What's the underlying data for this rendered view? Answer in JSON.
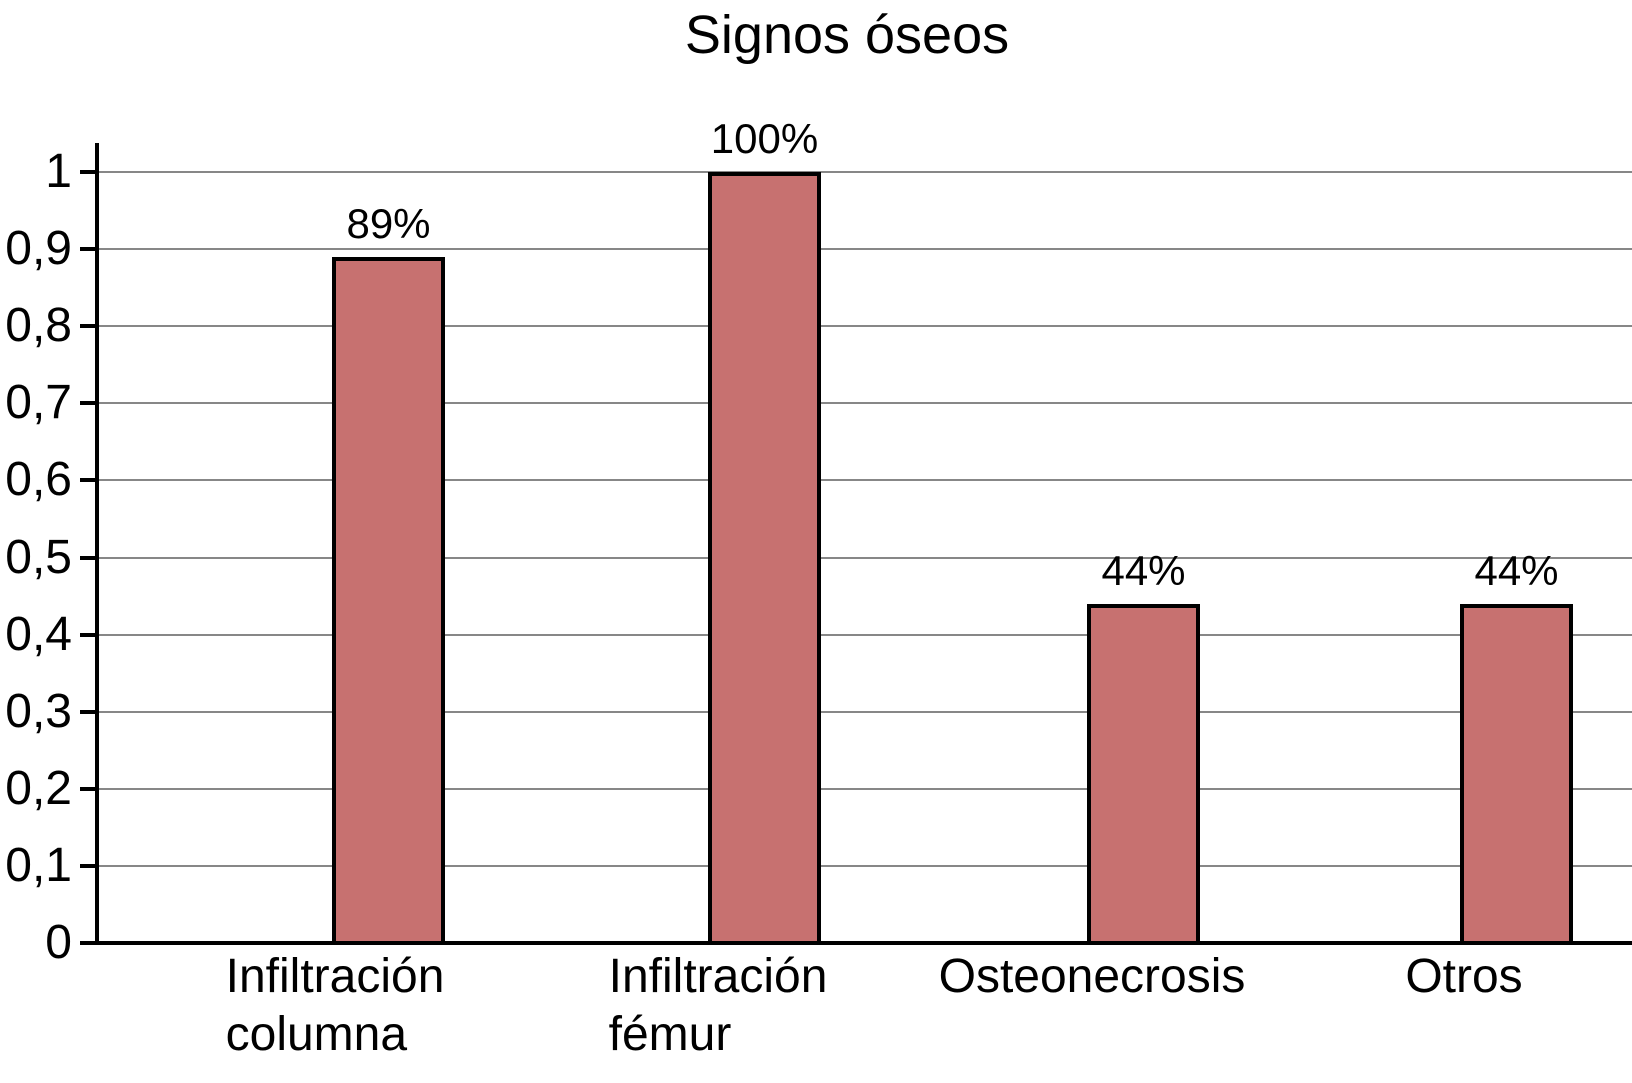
{
  "chart_data": {
    "type": "bar",
    "title": "Signos óseos",
    "categories": [
      "Infiltración\ncolumna",
      "Infiltración\nfémur",
      "Osteonecrosis",
      "Otros"
    ],
    "values": [
      0.89,
      1.0,
      0.44,
      0.44
    ],
    "value_labels": [
      "89%",
      "100%",
      "44%",
      "44%"
    ],
    "xlabel": "",
    "ylabel": "",
    "ylim": [
      0,
      1
    ],
    "ytick_step": 0.1,
    "ytick_labels": [
      "0",
      "0,1",
      "0,2",
      "0,3",
      "0,4",
      "0,5",
      "0,6",
      "0,7",
      "0,8",
      "0,9",
      "1"
    ],
    "decimal_separator": ",",
    "grid": "horizontal",
    "legend_position": "none",
    "colors": {
      "bar_fill": "#C77170",
      "bar_border": "#000000",
      "gridline": "#878787",
      "axis": "#000000",
      "text": "#000000",
      "background": "#FFFFFF"
    }
  }
}
